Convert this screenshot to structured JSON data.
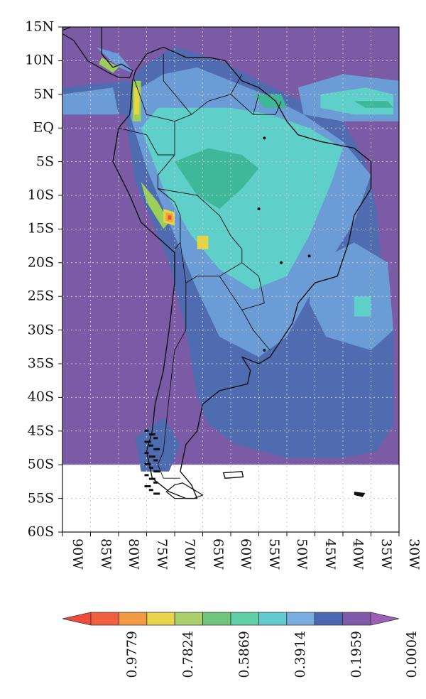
{
  "map": {
    "lat_ticks": [
      "15N",
      "10N",
      "5N",
      "EQ",
      "5S",
      "10S",
      "15S",
      "20S",
      "25S",
      "30S",
      "35S",
      "40S",
      "45S",
      "50S",
      "55S",
      "60S"
    ],
    "lon_ticks": [
      "90W",
      "85W",
      "80W",
      "75W",
      "70W",
      "65W",
      "60W",
      "55W",
      "50W",
      "45W",
      "40W",
      "35W",
      "30W"
    ],
    "extent": {
      "lon": [
        -90,
        -30
      ],
      "lat": [
        -60,
        15
      ]
    },
    "data_coverage_lat_min": -50,
    "colors": {
      "background": "#7b5aa6",
      "band_1": "#4f6cb0",
      "band_2": "#6b9cd6",
      "band_3": "#5ecfc9",
      "band_4": "#3fb89a",
      "band_5": "#9cce5a",
      "band_6": "#e6d542",
      "band_7": "#f1a13f",
      "band_8": "#ee4b3a",
      "coastline": "#111111",
      "grid": "#c8c8c8"
    }
  },
  "colorbar": {
    "labels": [
      "0.9779",
      "0.7824",
      "0.5869",
      "0.3914",
      "0.1959",
      "0.0004"
    ],
    "colors": [
      "#f0603f",
      "#f29a44",
      "#e8d34a",
      "#a9d06a",
      "#6fc67a",
      "#5fcfa6",
      "#62cad0",
      "#79ade0",
      "#4c67b0",
      "#7e5aa8"
    ],
    "end_colors": [
      "#ee4b3a",
      "#9b5fb8"
    ]
  }
}
